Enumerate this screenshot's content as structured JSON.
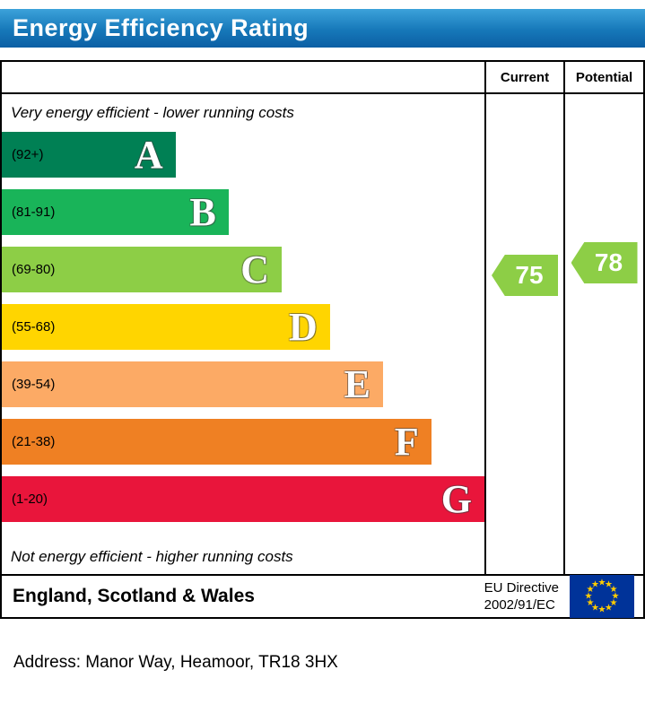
{
  "header": {
    "title": "Energy Efficiency Rating"
  },
  "chart_data": {
    "type": "bar",
    "title": "Energy Efficiency Rating",
    "columns": [
      "Current",
      "Potential"
    ],
    "top_note": "Very energy efficient - lower running costs",
    "bottom_note": "Not energy efficient - higher running costs",
    "scale_min": 1,
    "scale_max": 100,
    "bands": [
      {
        "letter": "A",
        "range_label": "(92+)",
        "min": 92,
        "max": 100,
        "color": "#008054",
        "width_pct": 36
      },
      {
        "letter": "B",
        "range_label": "(81-91)",
        "min": 81,
        "max": 91,
        "color": "#19b459",
        "width_pct": 47
      },
      {
        "letter": "C",
        "range_label": "(69-80)",
        "min": 69,
        "max": 80,
        "color": "#8dce46",
        "width_pct": 58
      },
      {
        "letter": "D",
        "range_label": "(55-68)",
        "min": 55,
        "max": 68,
        "color": "#ffd500",
        "width_pct": 68
      },
      {
        "letter": "E",
        "range_label": "(39-54)",
        "min": 39,
        "max": 54,
        "color": "#fcaa65",
        "width_pct": 79
      },
      {
        "letter": "F",
        "range_label": "(21-38)",
        "min": 21,
        "max": 38,
        "color": "#ef8023",
        "width_pct": 89
      },
      {
        "letter": "G",
        "range_label": "(1-20)",
        "min": 1,
        "max": 20,
        "color": "#e9153b",
        "width_pct": 100
      }
    ],
    "current": {
      "value": 75,
      "band": "C",
      "color": "#8dce46"
    },
    "potential": {
      "value": 78,
      "band": "C",
      "color": "#8dce46"
    }
  },
  "footer": {
    "region": "England, Scotland & Wales",
    "directive_line1": "EU Directive",
    "directive_line2": "2002/91/EC",
    "flag": {
      "background": "#003399",
      "star_color": "#ffcc00"
    }
  },
  "address": {
    "text": "Address: Manor Way, Heamoor, TR18 3HX"
  }
}
